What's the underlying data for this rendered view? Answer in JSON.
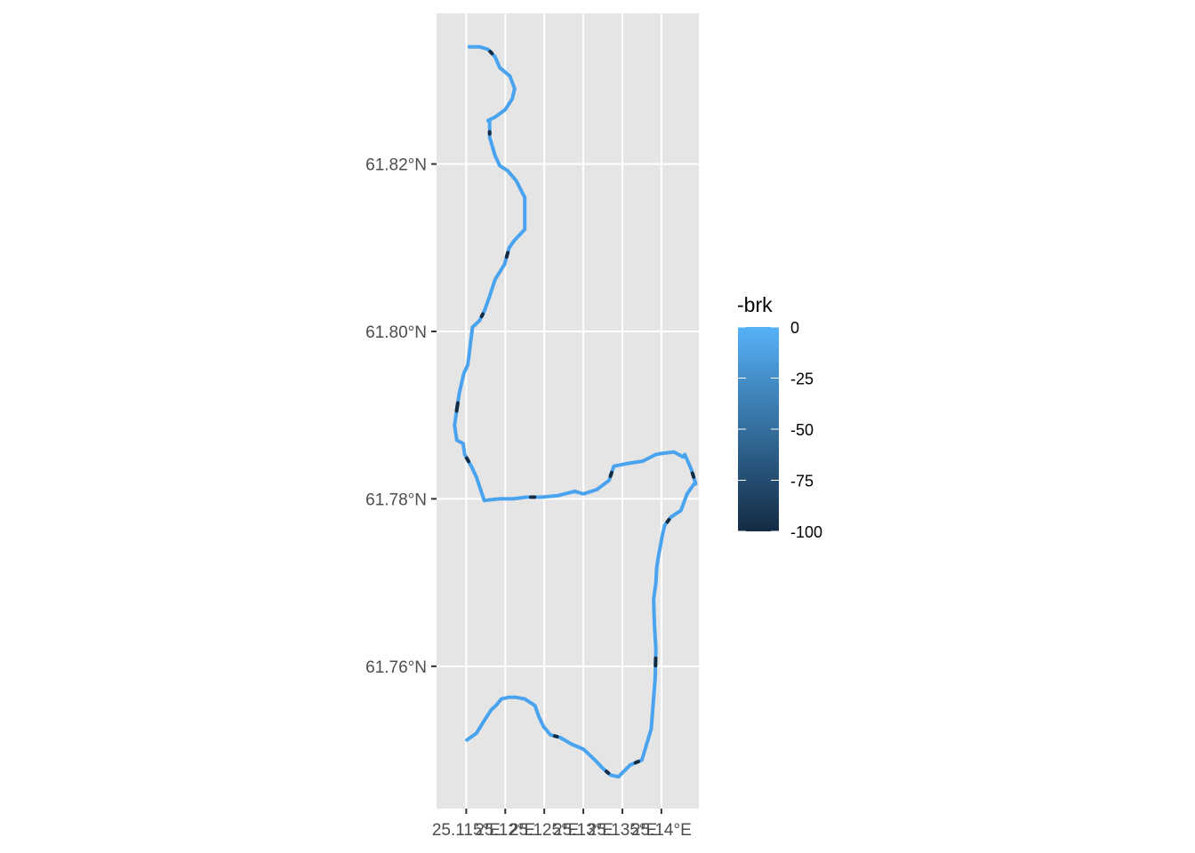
{
  "chart_data": {
    "type": "line",
    "title": "",
    "xlabel": "",
    "ylabel": "",
    "colors": {
      "panel": "#e5e5e5",
      "grid": "#ffffff",
      "low": "#132b43",
      "high": "#56b1f7",
      "track": "#4aa3ef"
    },
    "x_ticks": [
      {
        "value": 25.115,
        "label": "25.115°E"
      },
      {
        "value": 25.12,
        "label": "25.12°E"
      },
      {
        "value": 25.125,
        "label": "25.125°E"
      },
      {
        "value": 25.13,
        "label": "25.13°E"
      },
      {
        "value": 25.135,
        "label": "25.135°E"
      },
      {
        "value": 25.14,
        "label": "25.14°E"
      }
    ],
    "y_ticks": [
      {
        "value": 61.76,
        "label": "61.76°N"
      },
      {
        "value": 61.78,
        "label": "61.78°N"
      },
      {
        "value": 61.8,
        "label": "61.80°N"
      },
      {
        "value": 61.82,
        "label": "61.82°N"
      }
    ],
    "xlim": [
      25.1112,
      25.1448
    ],
    "ylim": [
      61.743,
      61.838
    ],
    "legend": {
      "title": "-brk",
      "placement": "right",
      "range": [
        -100,
        0
      ],
      "breaks": [
        {
          "value": 0,
          "label": "0"
        },
        {
          "value": -25,
          "label": "-25"
        },
        {
          "value": -50,
          "label": "-50"
        },
        {
          "value": -75,
          "label": "-75"
        },
        {
          "value": -100,
          "label": "-100"
        }
      ]
    },
    "track": {
      "lon": [
        25.1151,
        25.1163,
        25.1175,
        25.1182,
        25.1188,
        25.1195,
        25.1205,
        25.1213,
        25.1225,
        25.1238,
        25.1243,
        25.1249,
        25.1258,
        25.127,
        25.1285,
        25.13,
        25.1315,
        25.1325,
        25.1335,
        25.1345,
        25.136,
        25.1375,
        25.1387,
        25.1392,
        25.1393,
        25.1391,
        25.139,
        25.1393,
        25.1394,
        25.1396,
        25.1401,
        25.1404,
        25.1412,
        25.1425,
        25.1433,
        25.1442,
        25.1444,
        25.1438,
        25.143,
        25.1428,
        25.1416,
        25.1399,
        25.1393,
        25.1376,
        25.1355,
        25.1339,
        25.1333,
        25.1317,
        25.13,
        25.1289,
        25.1268,
        25.1246,
        25.1227,
        25.121,
        25.1193,
        25.1173,
        25.1163,
        25.1157,
        25.1148,
        25.1146,
        25.1138,
        25.1135,
        25.1141,
        25.1147,
        25.1152,
        25.1158,
        25.1167,
        25.1173,
        25.118,
        25.1187,
        25.1199,
        25.1205,
        25.1211,
        25.1225,
        25.1225,
        25.1214,
        25.1203,
        25.1193,
        25.1187,
        25.118,
        25.118,
        25.118,
        25.1178,
        25.1187,
        25.12,
        25.1209,
        25.1212,
        25.1206,
        25.1193,
        25.1187,
        25.1178,
        25.1167,
        25.1154
      ],
      "lat": [
        61.7512,
        61.752,
        61.7538,
        61.7548,
        61.7553,
        61.7561,
        61.7563,
        61.7563,
        61.7561,
        61.7553,
        61.754,
        61.7528,
        61.7518,
        61.7515,
        61.7507,
        61.7501,
        61.7488,
        61.7478,
        61.747,
        61.7468,
        61.7482,
        61.7488,
        61.7525,
        61.7585,
        61.762,
        61.765,
        61.768,
        61.77,
        61.7718,
        61.773,
        61.7755,
        61.7768,
        61.7778,
        61.7786,
        61.7806,
        61.7818,
        61.7818,
        61.7836,
        61.7853,
        61.785,
        61.7856,
        61.7854,
        61.7853,
        61.7845,
        61.7842,
        61.7839,
        61.7822,
        61.7811,
        61.7806,
        61.7809,
        61.7804,
        61.7802,
        61.7802,
        61.78,
        61.78,
        61.7798,
        61.7826,
        61.7838,
        61.7853,
        61.7866,
        61.787,
        61.7888,
        61.7926,
        61.795,
        61.796,
        61.8005,
        61.8013,
        61.8024,
        61.8042,
        61.8062,
        61.808,
        61.81,
        61.8108,
        61.8122,
        61.816,
        61.818,
        61.8192,
        61.8198,
        61.821,
        61.8232,
        61.8241,
        61.825,
        61.8252,
        61.8256,
        61.8265,
        61.8278,
        61.829,
        61.8305,
        61.8315,
        61.8328,
        61.8337,
        61.834,
        61.834
      ],
      "brake_marks": [
        12,
        17,
        20,
        23,
        31,
        36,
        45,
        51,
        57,
        61,
        66,
        70,
        79,
        89
      ]
    }
  }
}
